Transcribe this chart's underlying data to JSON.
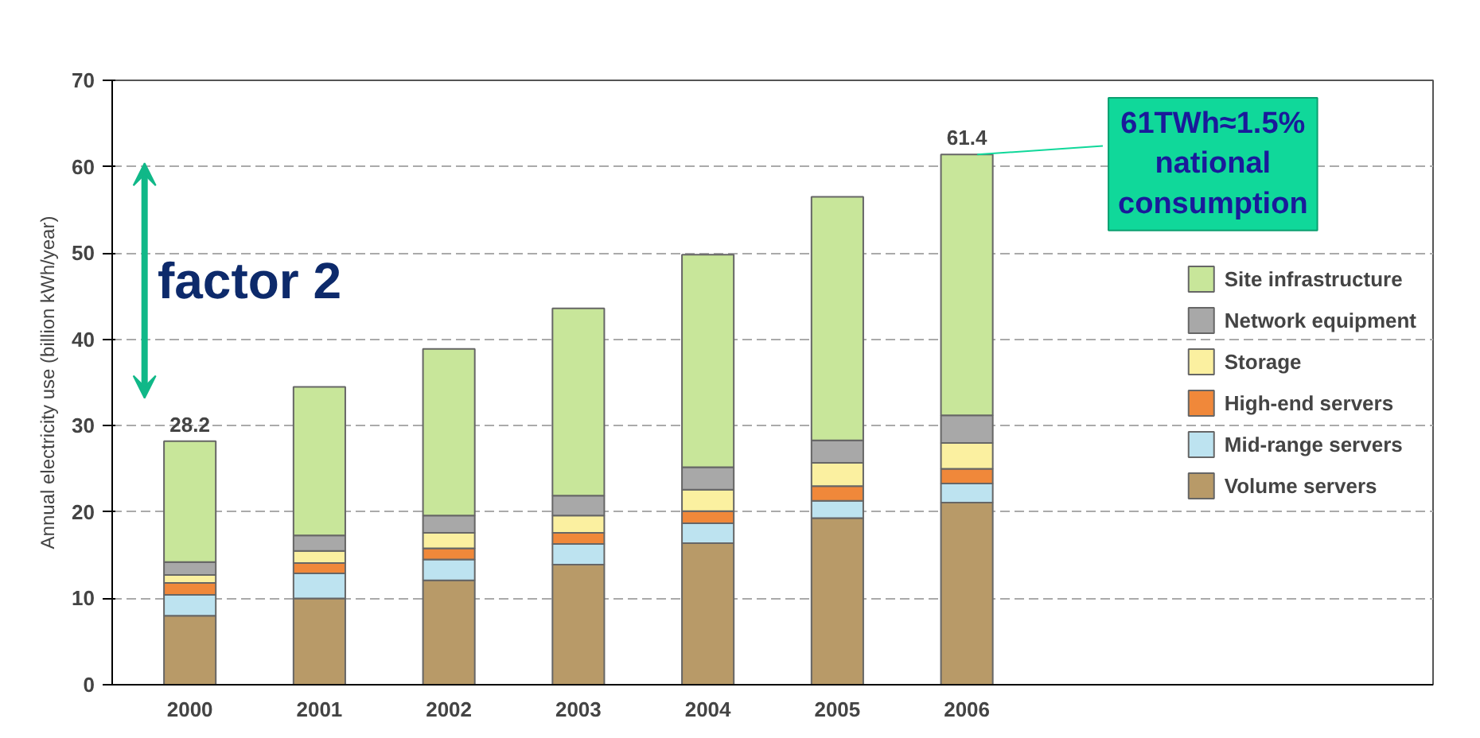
{
  "chart_data": {
    "type": "bar",
    "stacked": true,
    "ylabel": "Annual electricity use (billion kWh/year)",
    "categories": [
      "2000",
      "2001",
      "2002",
      "2003",
      "2004",
      "2005",
      "2006"
    ],
    "series": [
      {
        "name": "Volume servers",
        "color": "#b89a68",
        "values": [
          8.0,
          10.0,
          12.1,
          13.9,
          16.4,
          19.3,
          21.1
        ]
      },
      {
        "name": "Mid-range servers",
        "color": "#bde3f0",
        "values": [
          2.4,
          2.9,
          2.4,
          2.4,
          2.3,
          2.0,
          2.2
        ]
      },
      {
        "name": "High-end servers",
        "color": "#f0883a",
        "values": [
          1.4,
          1.2,
          1.3,
          1.3,
          1.4,
          1.7,
          1.7
        ]
      },
      {
        "name": "Storage",
        "color": "#fbf0a0",
        "values": [
          0.9,
          1.4,
          1.8,
          2.0,
          2.5,
          2.7,
          3.0
        ]
      },
      {
        "name": "Network equipment",
        "color": "#a8a8a8",
        "values": [
          1.5,
          1.8,
          2.0,
          2.3,
          2.6,
          2.6,
          3.2
        ]
      },
      {
        "name": "Site infrastructure",
        "color": "#c8e69a",
        "values": [
          14.0,
          17.2,
          19.3,
          21.7,
          24.6,
          28.2,
          30.2
        ]
      }
    ],
    "totals": [
      "28.2",
      null,
      null,
      null,
      null,
      null,
      "61.4"
    ],
    "ylim": [
      0,
      70
    ],
    "yticks": [
      0,
      10,
      20,
      30,
      40,
      50,
      60,
      70
    ],
    "grid": "y",
    "legend": "right",
    "annotations": [
      "factor 2",
      {
        "text": "61TWh≈1.5%\nnational\nconsumption",
        "x": "2006",
        "y": 61.4
      }
    ]
  }
}
